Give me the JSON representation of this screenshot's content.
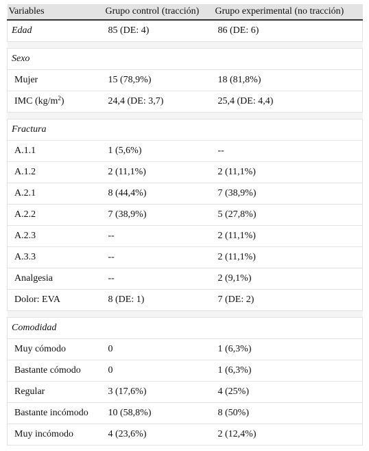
{
  "headers": [
    "Variables",
    "Grupo control (tracción)",
    "Grupo experimental (no tracción)"
  ],
  "edad": {
    "label": "Edad",
    "control": "85 (DE: 4)",
    "exp": "86 (DE: 6)"
  },
  "sexo": {
    "label": "Sexo"
  },
  "mujer": {
    "label": "Mujer",
    "control": "15 (78,9%)",
    "exp": "18 (81,8%)"
  },
  "imc": {
    "label": "IMC (kg/m",
    "sup": "2",
    "label_end": ")",
    "control": "24,4 (DE: 3,7)",
    "exp": "25,4 (DE: 4,4)"
  },
  "fractura": {
    "label": "Fractura"
  },
  "a11": {
    "label": "A.1.1",
    "control": "1 (5,6%)",
    "exp": "--"
  },
  "a12": {
    "label": "A.1.2",
    "control": "2 (11,1%)",
    "exp": "2 (11,1%)"
  },
  "a21": {
    "label": "A.2.1",
    "control": "8 (44,4%)",
    "exp": "7 (38,9%)"
  },
  "a22": {
    "label": "A.2.2",
    "control": "7 (38,9%)",
    "exp": "5 (27,8%)"
  },
  "a23": {
    "label": "A.2.3",
    "control": "--",
    "exp": "2 (11,1%)"
  },
  "a33": {
    "label": "A.3.3",
    "control": "--",
    "exp": "2 (11,1%)"
  },
  "analgesia": {
    "label": "Analgesia",
    "control": "--",
    "exp": "2 (9,1%)"
  },
  "dolor": {
    "label": "Dolor: EVA",
    "control": "8 (DE: 1)",
    "exp": "7 (DE: 2)"
  },
  "comodidad": {
    "label": "Comodidad"
  },
  "muycomodo": {
    "label": "Muy cómodo",
    "control": "0",
    "exp": "1 (6,3%)"
  },
  "bastcomodo": {
    "label": "Bastante cómodo",
    "control": "0",
    "exp": "1 (6,3%)"
  },
  "regular": {
    "label": "Regular",
    "control": "3 (17,6%)",
    "exp": "4 (25%)"
  },
  "bastincomodo": {
    "label": "Bastante incómodo",
    "control": "10 (58,8%)",
    "exp": "8 (50%)"
  },
  "muyincomodo": {
    "label": "Muy incómodo",
    "control": "4 (23,6%)",
    "exp": "2 (12,4%)"
  }
}
